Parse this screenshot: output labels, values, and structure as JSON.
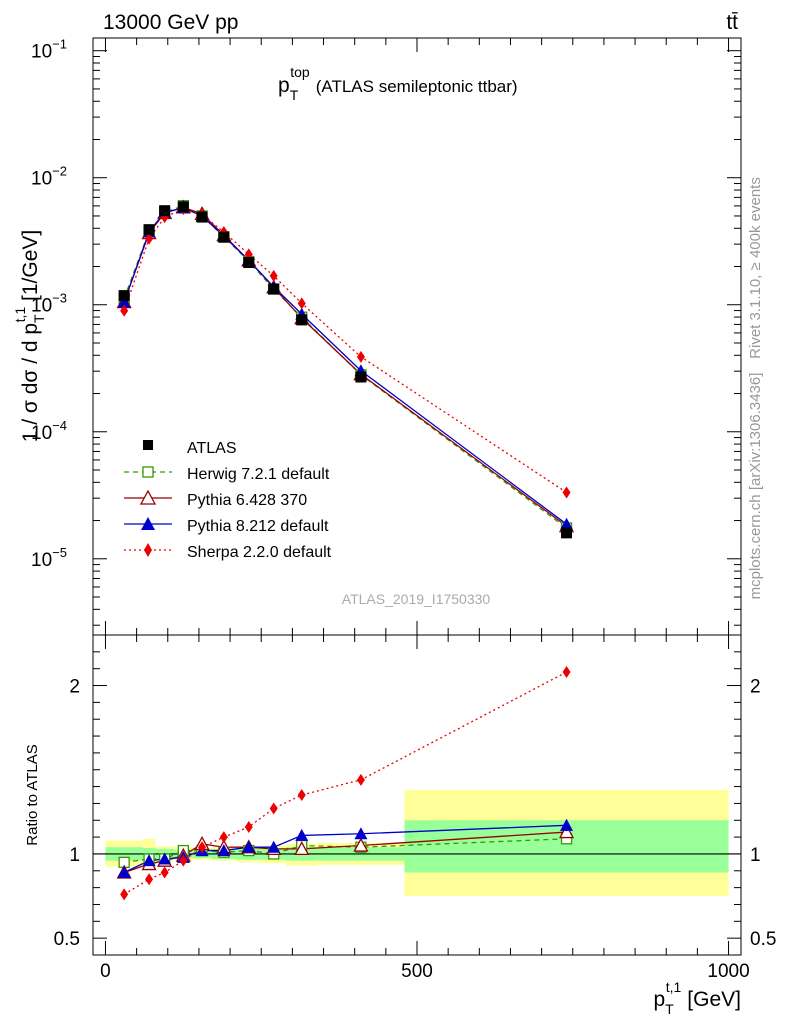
{
  "header": {
    "energy_label": "13000 GeV pp",
    "process_label": "tt̄",
    "plot_title_main": "p",
    "plot_title_sub": "T",
    "plot_title_sup": "top",
    "plot_title_rest": "(ATLAS semileptonic ttbar)",
    "rivet_label": "Rivet 3.1.10, ≥ 400k events",
    "mcplots_label": "mcplots.cern.ch [arXiv:1306.3436]",
    "analysis_watermark": "ATLAS_2019_I1750330"
  },
  "main_axis": {
    "ylabel": "1 / σ dσ / d p T t,1 [1/GeV]",
    "ylabel_parts": [
      "1 / σ dσ / d p",
      "T",
      "t,1",
      " [1/GeV]"
    ],
    "ylim_log10": [
      -5.6,
      -0.9
    ],
    "yticks": [
      {
        "base": "10",
        "exp": "−1",
        "value": 0.1
      },
      {
        "base": "10",
        "exp": "−2",
        "value": 0.01
      },
      {
        "base": "10",
        "exp": "−3",
        "value": 0.001
      },
      {
        "base": "10",
        "exp": "−4",
        "value": 0.0001
      },
      {
        "base": "10",
        "exp": "−5",
        "value": 1e-05
      }
    ]
  },
  "ratio_axis": {
    "ylabel": "Ratio to ATLAS",
    "ylim": [
      0.4,
      2.3
    ],
    "yticks": [
      {
        "label": "2",
        "value": 2
      },
      {
        "label": "1",
        "value": 1
      },
      {
        "label": "0.5",
        "value": 0.5
      }
    ]
  },
  "x_axis": {
    "label_main": "p",
    "label_sub": "T",
    "label_sup": "t,1",
    "label_unit": "[GeV]",
    "xlim": [
      -20,
      1020
    ],
    "xticks": [
      {
        "label": "0",
        "value": 0
      },
      {
        "label": "500",
        "value": 500
      },
      {
        "label": "1000",
        "value": 1000
      }
    ]
  },
  "legend": {
    "position": "bottom-left",
    "entries": [
      {
        "label": "ATLAS"
      },
      {
        "label": "Herwig 7.2.1 default"
      },
      {
        "label": "Pythia 6.428 370"
      },
      {
        "label": "Pythia 8.212 default"
      },
      {
        "label": "Sherpa 2.2.0 default"
      }
    ]
  },
  "chart_data": {
    "type": "line",
    "title": "pT top (ATLAS semileptonic ttbar)",
    "xlabel": "pT t,1 [GeV]",
    "ylabel": "1/σ dσ/dpT t,1 [1/GeV]",
    "yscale": "log",
    "x": [
      30,
      70,
      95,
      125,
      155,
      190,
      230,
      270,
      315,
      410,
      740
    ],
    "bin_edges": [
      0,
      60,
      80,
      110,
      140,
      170,
      210,
      250,
      290,
      340,
      480,
      1000
    ],
    "data": {
      "name": "ATLAS",
      "color": "#000000",
      "values": [
        0.00118,
        0.0039,
        0.0055,
        0.0059,
        0.0049,
        0.0034,
        0.00215,
        0.00133,
        0.00076,
        0.00027,
        1.6e-05
      ],
      "band_inner": [
        [
          0.96,
          1.04
        ],
        [
          0.965,
          1.035
        ],
        [
          0.97,
          1.03
        ],
        [
          0.975,
          1.025
        ],
        [
          0.975,
          1.025
        ],
        [
          0.97,
          1.03
        ],
        [
          0.965,
          1.035
        ],
        [
          0.965,
          1.035
        ],
        [
          0.96,
          1.04
        ],
        [
          0.96,
          1.04
        ],
        [
          0.89,
          1.2
        ]
      ],
      "band_outer": [
        [
          0.925,
          1.08
        ],
        [
          0.93,
          1.09
        ],
        [
          0.955,
          1.045
        ],
        [
          0.96,
          1.04
        ],
        [
          0.965,
          1.035
        ],
        [
          0.96,
          1.04
        ],
        [
          0.95,
          1.045
        ],
        [
          0.945,
          1.05
        ],
        [
          0.93,
          1.06
        ],
        [
          0.935,
          1.065
        ],
        [
          0.75,
          1.38
        ]
      ]
    },
    "series": [
      {
        "name": "Herwig 7.2.1 default",
        "color": "#339900",
        "dash": "5,4",
        "marker": "open-square",
        "ratio": [
          0.95,
          0.97,
          0.97,
          1.02,
          1.02,
          1.01,
          1.02,
          1.0,
          1.05,
          1.04,
          1.09
        ]
      },
      {
        "name": "Pythia 6.428 370",
        "color": "#990000",
        "dash": "",
        "marker": "open-triangle",
        "ratio": [
          0.89,
          0.94,
          0.96,
          0.99,
          1.06,
          1.04,
          1.04,
          1.03,
          1.03,
          1.05,
          1.13
        ]
      },
      {
        "name": "Pythia 8.212 default",
        "color": "#0000cc",
        "dash": "",
        "marker": "filled-triangle",
        "ratio": [
          0.89,
          0.96,
          0.97,
          0.98,
          1.02,
          1.02,
          1.04,
          1.04,
          1.11,
          1.12,
          1.17
        ]
      },
      {
        "name": "Sherpa 2.2.0 default",
        "color": "#ee0000",
        "dash": "2,3",
        "marker": "diamond",
        "ratio": [
          0.76,
          0.85,
          0.89,
          0.96,
          1.04,
          1.1,
          1.16,
          1.27,
          1.35,
          1.44,
          2.08
        ]
      }
    ]
  }
}
